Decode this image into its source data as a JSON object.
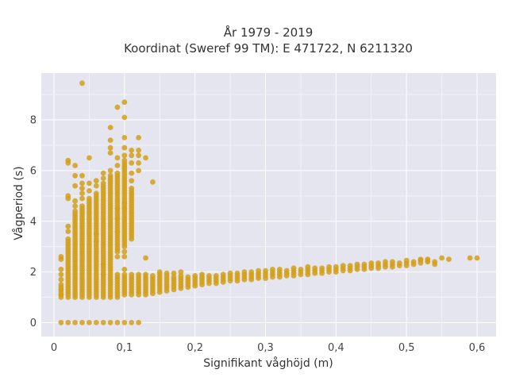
{
  "chart_data": {
    "type": "scatter",
    "title_lines": [
      "År 1979 - 2019",
      "Koordinat (Sweref 99 TM): E 471722, N 6211320"
    ],
    "xlabel": "Signifikant våghöjd (m)",
    "ylabel": "Vågperiod (s)",
    "xlim": [
      -0.018,
      0.627
    ],
    "ylim": [
      -0.55,
      9.85
    ],
    "xticks": [
      0,
      0.1,
      0.2,
      0.3,
      0.4,
      0.5,
      0.6
    ],
    "xtick_labels": [
      "0",
      "0,1",
      "0,2",
      "0,3",
      "0,4",
      "0,5",
      "0,6"
    ],
    "yticks": [
      0,
      2,
      4,
      6,
      8
    ],
    "ytick_labels": [
      "0",
      "2",
      "4",
      "6",
      "8"
    ],
    "grid": true,
    "legend": "none",
    "marker_color": "#D4A017",
    "background_color": "#E5E5EF",
    "series": [
      {
        "points": [
          [
            0.01,
            0
          ],
          [
            0.02,
            0
          ],
          [
            0.03,
            0
          ],
          [
            0.04,
            0
          ],
          [
            0.05,
            0
          ],
          [
            0.06,
            0
          ],
          [
            0.07,
            0
          ],
          [
            0.08,
            0
          ],
          [
            0.09,
            0
          ],
          [
            0.1,
            0
          ],
          [
            0.11,
            0
          ],
          [
            0.12,
            0
          ],
          [
            0.01,
            2.6
          ],
          [
            0.01,
            2.5
          ],
          [
            0.01,
            2.1
          ],
          [
            0.01,
            1.9
          ],
          [
            0.01,
            1.7
          ],
          [
            0.01,
            1.5
          ],
          [
            0.01,
            1.3
          ],
          [
            0.01,
            1.1
          ],
          [
            0.02,
            6.4
          ],
          [
            0.02,
            6.3
          ],
          [
            0.02,
            5.0
          ],
          [
            0.02,
            4.9
          ],
          [
            0.02,
            3.8
          ],
          [
            0.02,
            3.6
          ],
          [
            0.03,
            6.2
          ],
          [
            0.03,
            5.8
          ],
          [
            0.03,
            5.4
          ],
          [
            0.03,
            4.8
          ],
          [
            0.03,
            4.6
          ],
          [
            0.03,
            4.4
          ],
          [
            0.04,
            9.45
          ],
          [
            0.04,
            5.8
          ],
          [
            0.04,
            5.5
          ],
          [
            0.04,
            5.3
          ],
          [
            0.04,
            5.1
          ],
          [
            0.04,
            4.9
          ],
          [
            0.04,
            4.6
          ],
          [
            0.05,
            6.5
          ],
          [
            0.05,
            5.5
          ],
          [
            0.05,
            5.2
          ],
          [
            0.05,
            4.9
          ],
          [
            0.05,
            4.8
          ],
          [
            0.06,
            5.6
          ],
          [
            0.06,
            5.4
          ],
          [
            0.06,
            5.1
          ],
          [
            0.06,
            3.5
          ],
          [
            0.06,
            3.2
          ],
          [
            0.07,
            5.9
          ],
          [
            0.07,
            5.7
          ],
          [
            0.07,
            2.3
          ],
          [
            0.07,
            1.9
          ],
          [
            0.08,
            6.9
          ],
          [
            0.08,
            6.7
          ],
          [
            0.08,
            7.2
          ],
          [
            0.08,
            7.7
          ],
          [
            0.08,
            6.0
          ],
          [
            0.08,
            5.8
          ],
          [
            0.09,
            8.5
          ],
          [
            0.09,
            6.5
          ],
          [
            0.09,
            6.2
          ],
          [
            0.09,
            4.5
          ],
          [
            0.09,
            4.1
          ],
          [
            0.09,
            3.6
          ],
          [
            0.09,
            2.8
          ],
          [
            0.09,
            2.6
          ],
          [
            0.09,
            1.9
          ],
          [
            0.1,
            8.7
          ],
          [
            0.1,
            8.1
          ],
          [
            0.1,
            7.3
          ],
          [
            0.1,
            6.9
          ],
          [
            0.1,
            6.6
          ],
          [
            0.1,
            4.7
          ],
          [
            0.1,
            4.5
          ],
          [
            0.1,
            2.8
          ],
          [
            0.1,
            2.6
          ],
          [
            0.1,
            2.1
          ],
          [
            0.11,
            6.8
          ],
          [
            0.11,
            6.6
          ],
          [
            0.11,
            6.3
          ],
          [
            0.11,
            5.9
          ],
          [
            0.11,
            5.6
          ],
          [
            0.11,
            5.3
          ],
          [
            0.11,
            1.9
          ],
          [
            0.12,
            7.3
          ],
          [
            0.12,
            6.8
          ],
          [
            0.12,
            6.6
          ],
          [
            0.12,
            6.3
          ],
          [
            0.12,
            6.0
          ],
          [
            0.12,
            1.9
          ],
          [
            0.13,
            6.5
          ],
          [
            0.13,
            2.55
          ],
          [
            0.14,
            5.55
          ],
          [
            0.15,
            2.0
          ],
          [
            0.16,
            1.95
          ],
          [
            0.17,
            1.95
          ],
          [
            0.18,
            2.0
          ],
          [
            0.52,
            2.5
          ],
          [
            0.53,
            2.45
          ],
          [
            0.55,
            2.55
          ],
          [
            0.56,
            2.5
          ],
          [
            0.59,
            2.55
          ],
          [
            0.6,
            2.55
          ]
        ],
        "columns": [
          [
            0.01,
            1.0,
            1.4
          ],
          [
            0.02,
            1.0,
            3.3
          ],
          [
            0.03,
            1.0,
            4.3
          ],
          [
            0.04,
            1.0,
            4.5
          ],
          [
            0.05,
            1.0,
            4.7
          ],
          [
            0.06,
            1.0,
            5.0
          ],
          [
            0.07,
            1.0,
            5.5
          ],
          [
            0.08,
            1.0,
            5.7
          ],
          [
            0.09,
            1.0,
            1.8
          ],
          [
            0.09,
            2.9,
            5.9
          ],
          [
            0.1,
            1.1,
            1.9
          ],
          [
            0.1,
            3.0,
            6.4
          ],
          [
            0.11,
            1.1,
            1.8
          ],
          [
            0.11,
            3.3,
            5.2
          ],
          [
            0.12,
            1.1,
            1.8
          ],
          [
            0.13,
            1.1,
            1.9
          ],
          [
            0.14,
            1.15,
            1.9
          ],
          [
            0.15,
            1.2,
            1.9
          ],
          [
            0.16,
            1.25,
            1.85
          ],
          [
            0.17,
            1.3,
            1.85
          ],
          [
            0.18,
            1.35,
            1.85
          ],
          [
            0.19,
            1.4,
            1.85
          ],
          [
            0.2,
            1.45,
            1.85
          ],
          [
            0.21,
            1.5,
            1.9
          ],
          [
            0.22,
            1.55,
            1.9
          ],
          [
            0.23,
            1.55,
            1.9
          ],
          [
            0.24,
            1.6,
            1.95
          ],
          [
            0.25,
            1.65,
            1.95
          ],
          [
            0.26,
            1.65,
            2.0
          ],
          [
            0.27,
            1.7,
            2.0
          ],
          [
            0.28,
            1.7,
            2.0
          ],
          [
            0.29,
            1.75,
            2.05
          ],
          [
            0.3,
            1.75,
            2.05
          ],
          [
            0.31,
            1.8,
            2.1
          ],
          [
            0.32,
            1.8,
            2.1
          ],
          [
            0.33,
            1.85,
            2.1
          ],
          [
            0.34,
            1.85,
            2.15
          ],
          [
            0.35,
            1.9,
            2.15
          ],
          [
            0.36,
            1.9,
            2.2
          ],
          [
            0.37,
            1.95,
            2.2
          ],
          [
            0.38,
            1.95,
            2.2
          ],
          [
            0.39,
            2.0,
            2.25
          ],
          [
            0.4,
            2.0,
            2.25
          ],
          [
            0.41,
            2.05,
            2.3
          ],
          [
            0.42,
            2.05,
            2.3
          ],
          [
            0.43,
            2.1,
            2.3
          ],
          [
            0.44,
            2.1,
            2.35
          ],
          [
            0.45,
            2.15,
            2.35
          ],
          [
            0.46,
            2.15,
            2.35
          ],
          [
            0.47,
            2.2,
            2.4
          ],
          [
            0.48,
            2.2,
            2.4
          ],
          [
            0.49,
            2.25,
            2.4
          ],
          [
            0.5,
            2.25,
            2.45
          ],
          [
            0.51,
            2.3,
            2.45
          ],
          [
            0.52,
            2.35,
            2.45
          ],
          [
            0.53,
            2.4,
            2.5
          ],
          [
            0.54,
            2.3,
            2.4
          ]
        ],
        "column_step": 0.1
      }
    ]
  }
}
